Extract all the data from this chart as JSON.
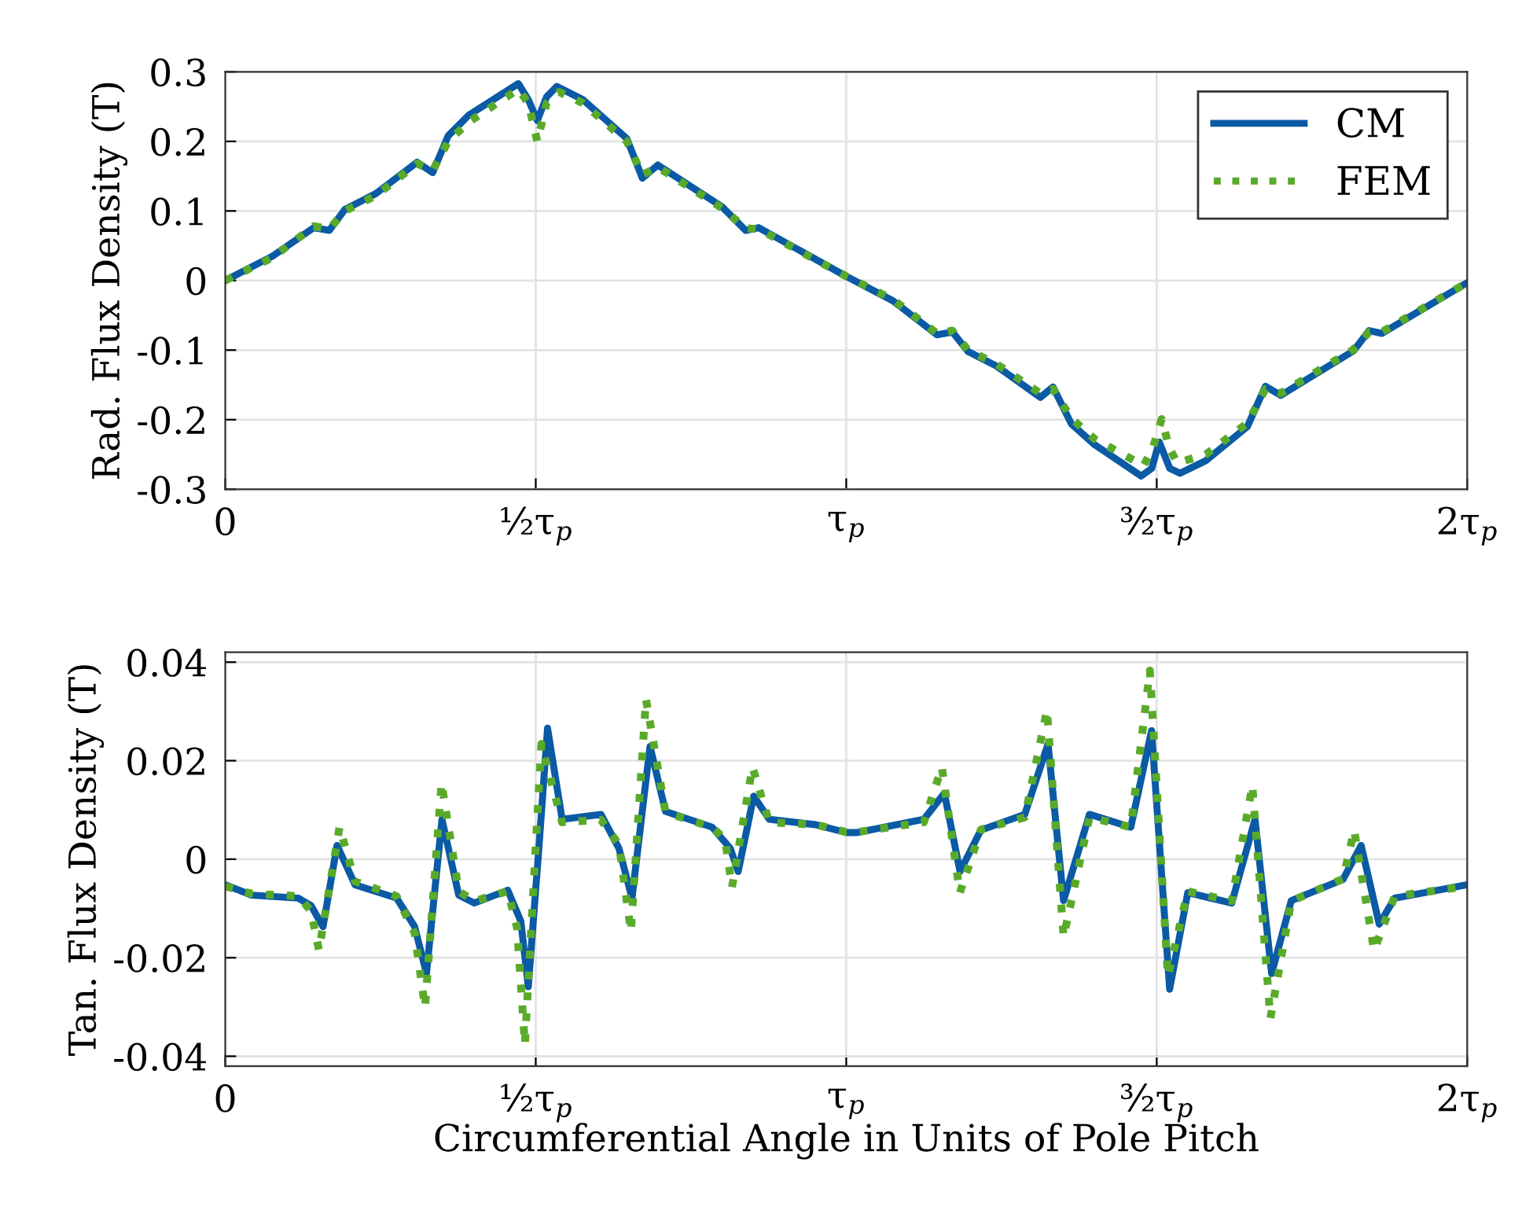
{
  "chart_data": [
    {
      "type": "line",
      "ylabel": "Rad. Flux Density (T)",
      "xlim": [
        0,
        2
      ],
      "xticks": [
        0,
        {
          "value": 0.5,
          "label": "½τ$_{p}$"
        },
        {
          "value": 1,
          "label": "τ$_{p}$"
        },
        {
          "value": 1.5,
          "label": "³⁄₂τ$_{p}$"
        },
        {
          "value": 2,
          "label": "2τ$_{p}$"
        }
      ],
      "ylim": [
        -0.3,
        0.3
      ],
      "yticks": [
        {
          "value": -0.3,
          "label": "-0.3"
        },
        {
          "value": -0.2,
          "label": "-0.2"
        },
        {
          "value": -0.1,
          "label": "-0.1"
        },
        0,
        0.1,
        0.2,
        0.3
      ],
      "grid": true,
      "legend": "top right",
      "series": [
        {
          "name": "CM",
          "color": "#0b5aa5",
          "line_style": "solid",
          "x": [
            0,
            0.076,
            0.1425,
            0.1675,
            0.1925,
            0.2425,
            0.309,
            0.334,
            0.359,
            0.3925,
            0.472,
            0.488,
            0.5025,
            0.5175,
            0.534,
            0.576,
            0.6467,
            0.6717,
            0.6967,
            0.8,
            0.838,
            0.859,
            1.0,
            1.075,
            1.146,
            1.171,
            1.196,
            1.242,
            1.3125,
            1.333,
            1.3625,
            1.4,
            1.475,
            1.492,
            1.504,
            1.521,
            1.5375,
            1.579,
            1.646,
            1.675,
            1.7,
            1.817,
            1.842,
            1.8625,
            2.0
          ],
          "values": [
            0,
            0.035,
            0.076,
            0.072,
            0.102,
            0.125,
            0.17,
            0.155,
            0.208,
            0.238,
            0.283,
            0.26,
            0.23,
            0.264,
            0.279,
            0.26,
            0.204,
            0.147,
            0.166,
            0.106,
            0.072,
            0.076,
            0.006,
            -0.029,
            -0.078,
            -0.074,
            -0.102,
            -0.123,
            -0.168,
            -0.153,
            -0.206,
            -0.236,
            -0.281,
            -0.27,
            -0.232,
            -0.27,
            -0.277,
            -0.259,
            -0.21,
            -0.152,
            -0.165,
            -0.101,
            -0.072,
            -0.076,
            -0.003
          ]
        },
        {
          "name": "FEM",
          "color": "#5aaa2a",
          "line_style": "dotted",
          "x": [
            0,
            0.076,
            0.1425,
            0.1675,
            0.1925,
            0.2425,
            0.309,
            0.334,
            0.359,
            0.3925,
            0.472,
            0.488,
            0.5025,
            0.5175,
            0.538,
            0.576,
            0.6467,
            0.6717,
            0.6967,
            0.8,
            0.838,
            0.859,
            1.0,
            1.075,
            1.146,
            1.171,
            1.196,
            1.242,
            1.3125,
            1.333,
            1.3625,
            1.4,
            1.479,
            1.494,
            1.508,
            1.52,
            1.533,
            1.579,
            1.646,
            1.675,
            1.7,
            1.817,
            1.842,
            1.8625,
            2.0
          ],
          "values": [
            0,
            0.033,
            0.078,
            0.074,
            0.1,
            0.122,
            0.168,
            0.158,
            0.2,
            0.228,
            0.275,
            0.255,
            0.2,
            0.255,
            0.271,
            0.255,
            0.2,
            0.152,
            0.163,
            0.104,
            0.075,
            0.074,
            0.006,
            -0.027,
            -0.076,
            -0.072,
            -0.1,
            -0.12,
            -0.162,
            -0.156,
            -0.198,
            -0.228,
            -0.266,
            -0.24,
            -0.199,
            -0.24,
            -0.262,
            -0.25,
            -0.205,
            -0.156,
            -0.162,
            -0.099,
            -0.074,
            -0.074,
            -0.003
          ]
        }
      ]
    },
    {
      "type": "line",
      "ylabel": "Tan. Flux Density (T)",
      "xlabel": "Circumferential Angle in Units of Pole Pitch",
      "xlim": [
        0,
        2
      ],
      "xticks": [
        0,
        {
          "value": 0.5,
          "label": "½τ$_{p}$"
        },
        {
          "value": 1,
          "label": "τ$_{p}$"
        },
        {
          "value": 1.5,
          "label": "³⁄₂τ$_{p}$"
        },
        {
          "value": 2,
          "label": "2τ$_{p}$"
        }
      ],
      "ylim": [
        -0.042,
        0.042
      ],
      "yticks": [
        {
          "value": -0.04,
          "label": "-0.04"
        },
        {
          "value": -0.02,
          "label": "-0.02"
        },
        0,
        0.02,
        0.04
      ],
      "grid": true,
      "legend": false,
      "series": [
        {
          "color": "#0b5aa5",
          "line_style": "solid",
          "x": [
            0,
            0.0425,
            0.1175,
            0.138,
            0.1575,
            0.18,
            0.209,
            0.276,
            0.305,
            0.324,
            0.349,
            0.376,
            0.401,
            0.455,
            0.476,
            0.488,
            0.505,
            0.519,
            0.5425,
            0.605,
            0.634,
            0.655,
            0.684,
            0.709,
            0.784,
            0.8133,
            0.826,
            0.851,
            0.876,
            0.951,
            1.0,
            1.0167,
            1.125,
            1.158,
            1.1833,
            1.2167,
            1.2875,
            1.325,
            1.35,
            1.3917,
            1.4583,
            1.4917,
            1.5208,
            1.55,
            1.6208,
            1.6583,
            1.685,
            1.7167,
            1.8,
            1.8292,
            1.8583,
            1.8833,
            2.0
          ],
          "values": [
            -0.0052,
            -0.0073,
            -0.0079,
            -0.0094,
            -0.0137,
            0.0028,
            -0.0052,
            -0.0079,
            -0.0137,
            -0.0232,
            0.0081,
            -0.0073,
            -0.0089,
            -0.0063,
            -0.0126,
            -0.0259,
            0.0022,
            0.0266,
            0.0081,
            0.0091,
            0.0022,
            -0.0079,
            0.0229,
            0.0097,
            0.0065,
            0.0022,
            -0.0025,
            0.0128,
            0.0081,
            0.007,
            0.0054,
            0.0054,
            0.0081,
            0.0134,
            -0.0025,
            0.0059,
            0.0091,
            0.0234,
            -0.0084,
            0.0091,
            0.0065,
            0.0261,
            -0.0264,
            -0.0068,
            -0.0089,
            0.0081,
            -0.0232,
            -0.0084,
            -0.0041,
            0.0028,
            -0.0132,
            -0.0079,
            -0.0052
          ]
        },
        {
          "color": "#5aaa2a",
          "line_style": "dotted",
          "x": [
            0,
            0.0425,
            0.1175,
            0.138,
            0.151,
            0.184,
            0.209,
            0.276,
            0.305,
            0.3217,
            0.3483,
            0.376,
            0.401,
            0.455,
            0.47,
            0.4825,
            0.509,
            0.5425,
            0.605,
            0.634,
            0.6533,
            0.6775,
            0.709,
            0.784,
            0.805,
            0.816,
            0.849,
            0.876,
            0.951,
            1.0,
            1.0167,
            1.125,
            1.154,
            1.183,
            1.2167,
            1.2875,
            1.3233,
            1.35,
            1.3917,
            1.4583,
            1.489,
            1.518,
            1.55,
            1.6208,
            1.654,
            1.683,
            1.7167,
            1.8,
            1.818,
            1.85,
            1.8833,
            2.0
          ],
          "values": [
            -0.0055,
            -0.007,
            -0.0075,
            -0.0105,
            -0.0185,
            0.0065,
            -0.0045,
            -0.0075,
            -0.015,
            -0.0301,
            0.0155,
            -0.0065,
            -0.0085,
            -0.0065,
            -0.014,
            -0.0376,
            0.0234,
            0.0075,
            0.008,
            0.003,
            -0.0147,
            0.0325,
            0.0095,
            0.0065,
            0.004,
            -0.0057,
            0.0187,
            0.0075,
            0.007,
            0.0055,
            0.0055,
            0.0075,
            0.0187,
            -0.0068,
            0.006,
            0.0085,
            0.0303,
            -0.0158,
            0.0085,
            0.0065,
            0.0383,
            -0.0238,
            -0.0065,
            -0.0085,
            0.015,
            -0.0323,
            -0.0085,
            -0.004,
            0.0059,
            -0.0185,
            -0.0075,
            -0.0055
          ]
        }
      ]
    }
  ]
}
